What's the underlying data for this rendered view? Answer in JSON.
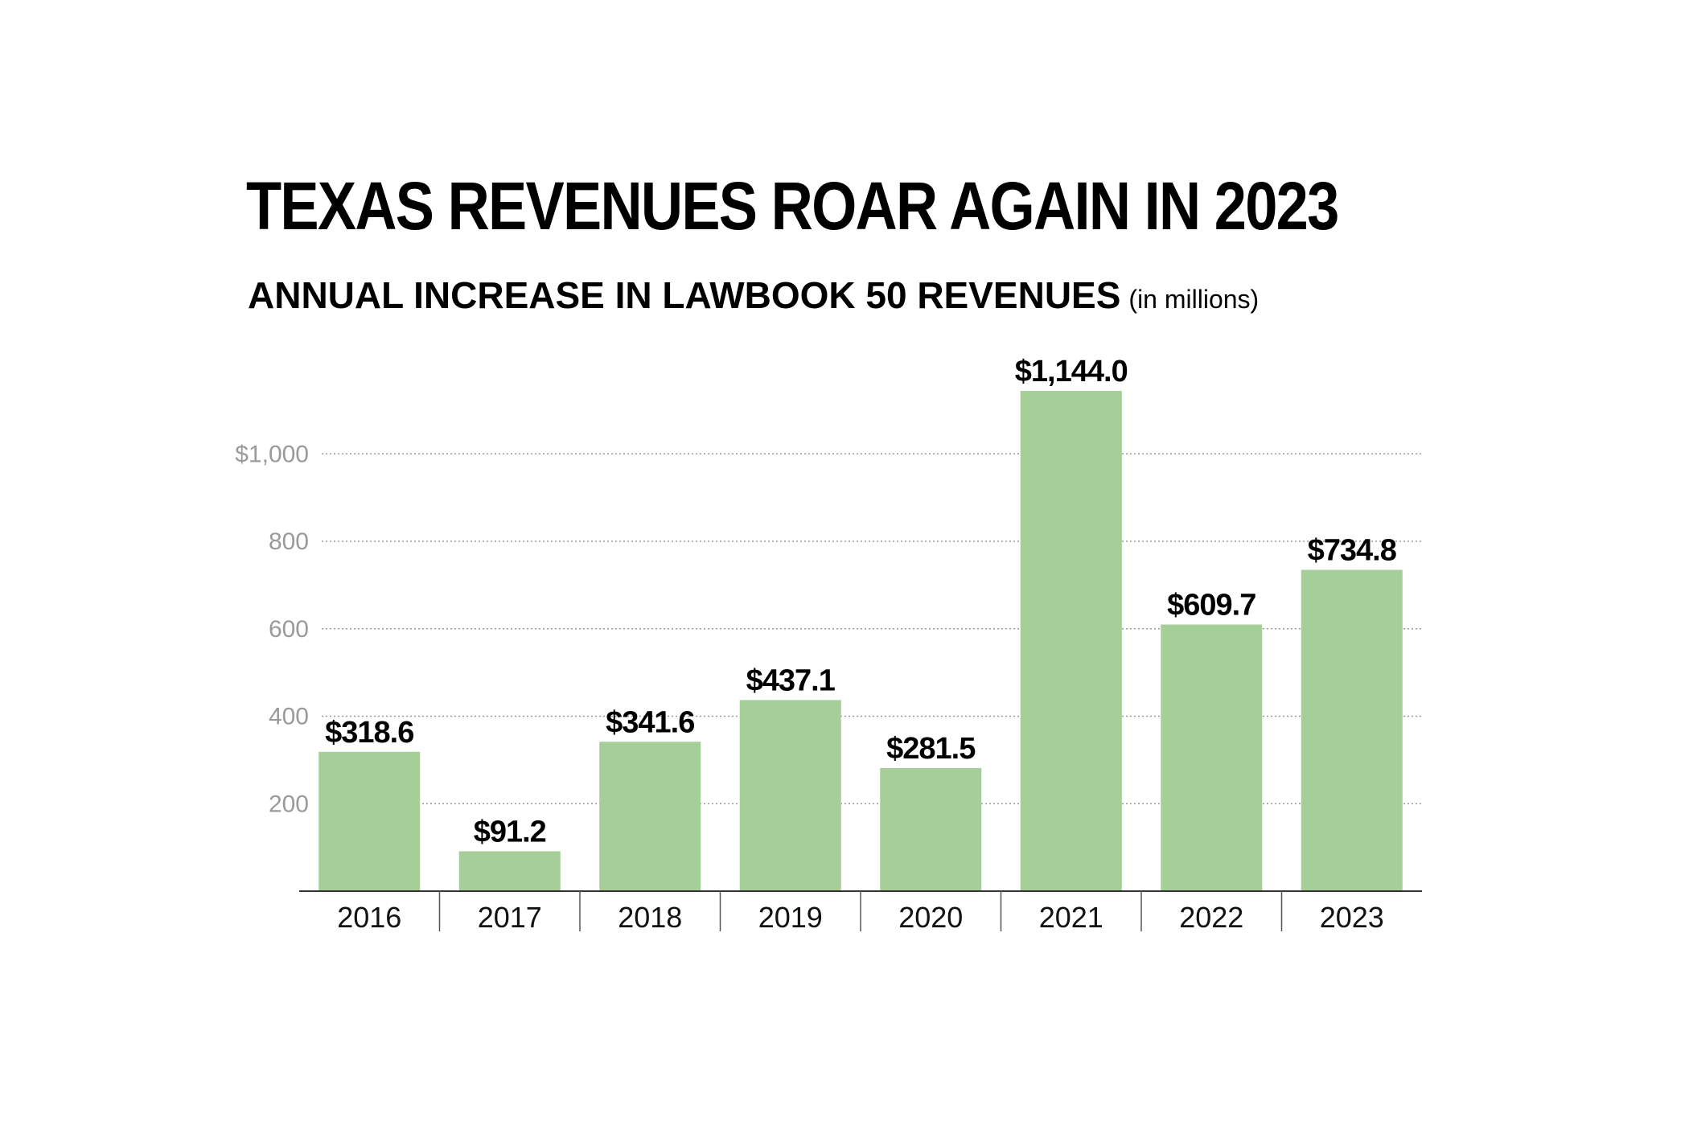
{
  "chart_data": {
    "type": "bar",
    "title": "TEXAS REVENUES ROAR AGAIN IN 2023",
    "subtitle": "ANNUAL INCREASE IN LAWBOOK 50 REVENUES",
    "unit_note": "(in millions)",
    "categories": [
      "2016",
      "2017",
      "2018",
      "2019",
      "2020",
      "2021",
      "2022",
      "2023"
    ],
    "values": [
      318.6,
      91.2,
      341.6,
      437.1,
      281.5,
      1144.0,
      609.7,
      734.8
    ],
    "data_labels": [
      "$318.6",
      "$91.2",
      "$341.6",
      "$437.1",
      "$281.5",
      "$1,144.0",
      "$609.7",
      "$734.8"
    ],
    "yticks": [
      200,
      400,
      600,
      800,
      1000
    ],
    "ytick_labels": [
      "200",
      "400",
      "600",
      "800",
      "$1,000"
    ],
    "ylim": [
      0,
      1144
    ],
    "grid": true,
    "bar_color": "#a6ce98"
  }
}
